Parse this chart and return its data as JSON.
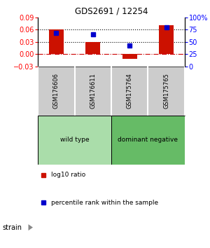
{
  "title": "GDS2691 / 12254",
  "samples": [
    "GSM176606",
    "GSM176611",
    "GSM175764",
    "GSM175765"
  ],
  "log10_ratio": [
    0.06,
    0.03,
    -0.012,
    0.07
  ],
  "percentile_rank": [
    68,
    65,
    42,
    79
  ],
  "groups": [
    {
      "label": "wild type",
      "samples": [
        0,
        1
      ],
      "color": "#aaddaa"
    },
    {
      "label": "dominant negative",
      "samples": [
        2,
        3
      ],
      "color": "#66bb66"
    }
  ],
  "bar_color": "#CC1100",
  "dot_color": "#0000CC",
  "ylim_left": [
    -0.03,
    0.09
  ],
  "yticks_left": [
    -0.03,
    0,
    0.03,
    0.06,
    0.09
  ],
  "ylim_right": [
    0,
    100
  ],
  "yticks_right": [
    0,
    25,
    50,
    75,
    100
  ],
  "ytick_right_labels": [
    "0",
    "25",
    "50",
    "75",
    "100%"
  ],
  "hlines": [
    0.06,
    0.03
  ],
  "hline_zero_color": "#CC0000",
  "background_color": "#ffffff",
  "plot_bg": "#ffffff",
  "sample_bg": "#cccccc",
  "strain_label": "strain",
  "legend_items": [
    "log10 ratio",
    "percentile rank within the sample"
  ]
}
